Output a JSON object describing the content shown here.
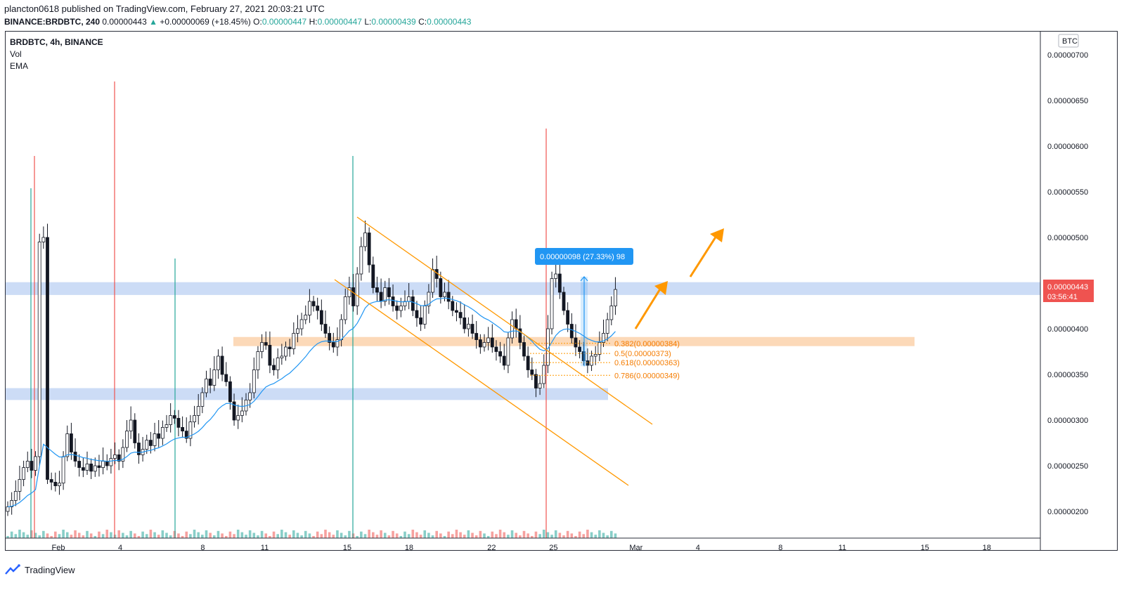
{
  "header": {
    "publisher": "plancton0618 published on TradingView.com, February 27, 2021 20:03:21 UTC",
    "symbol_line": "BINANCE:BRDBTC, 240",
    "last": "0.00000443",
    "change": "+0.00000069 (+18.45%)",
    "o_label": "O:",
    "o": "0.00000447",
    "h_label": "H:",
    "h": "0.00000447",
    "l_label": "L:",
    "l": "0.00000439",
    "c_label": "C:",
    "c": "0.00000443"
  },
  "legend": {
    "symbol": "BRDBTC, 4h, BINANCE",
    "vol": "Vol",
    "ema": "EMA"
  },
  "currency": "BTC",
  "price_tag": {
    "value": "0.00000443",
    "countdown": "03:56:41"
  },
  "measure_label": "0.00000098 (27.33%) 98",
  "fib": [
    {
      "label": "0.382(0.00000384)",
      "price": 3.84
    },
    {
      "label": "0.5(0.00000373)",
      "price": 3.73
    },
    {
      "label": "0.618(0.00000363)",
      "price": 3.63
    },
    {
      "label": "0.786(0.00000349)",
      "price": 3.49
    }
  ],
  "footer": {
    "brand": "TradingView"
  },
  "colors": {
    "up": "#26a69a",
    "down": "#ef5350",
    "ema": "#2196f3",
    "channel": "#ff9800",
    "zone_blue": "#c6d8f5",
    "zone_orange": "#fcd5b0",
    "price_tag": "#ef5350"
  },
  "chart_data": {
    "type": "candlestick",
    "title": "BRDBTC, 4h, BINANCE",
    "y_axis": {
      "unit": "BTC",
      "range": [
        1.8e-06,
        7.2e-06
      ],
      "scale": "1e-8",
      "ticks": [
        "0.00000700",
        "0.00000650",
        "0.00000600",
        "0.00000550",
        "0.00000500",
        "0.00000450",
        "0.00000400",
        "0.00000350",
        "0.00000300",
        "0.00000250",
        "0.00000200"
      ]
    },
    "x_axis": {
      "ticks": [
        "Feb",
        "4",
        "8",
        "11",
        "15",
        "18",
        "22",
        "25",
        "Mar",
        "4",
        "8",
        "11",
        "15",
        "18"
      ],
      "tick_days": [
        1,
        4,
        8,
        11,
        15,
        18,
        22,
        25,
        29,
        32,
        36,
        39,
        43,
        46
      ]
    },
    "resistance_zone": [
      4.37,
      4.51
    ],
    "support_zone": [
      3.22,
      3.35
    ],
    "fib_zone": [
      3.81,
      3.91
    ],
    "candles_anchor_day": -0.5,
    "candles_per_day": 6,
    "series_close": [
      2.05,
      2.12,
      2.22,
      2.35,
      2.48,
      2.55,
      2.45,
      2.6,
      4.95,
      5.0,
      2.35,
      2.32,
      2.28,
      2.31,
      2.6,
      2.85,
      2.65,
      2.55,
      2.48,
      2.45,
      2.52,
      2.44,
      2.5,
      2.48,
      2.55,
      2.5,
      2.58,
      2.62,
      2.55,
      2.7,
      2.88,
      3.0,
      2.75,
      2.62,
      2.68,
      2.78,
      2.72,
      2.85,
      2.8,
      2.92,
      2.95,
      3.05,
      3.02,
      2.92,
      2.88,
      2.8,
      2.98,
      3.05,
      3.15,
      3.3,
      3.45,
      3.38,
      3.55,
      3.7,
      3.5,
      3.42,
      3.2,
      3.0,
      3.05,
      3.1,
      3.22,
      3.3,
      3.55,
      3.75,
      3.85,
      3.82,
      3.6,
      3.55,
      3.68,
      3.7,
      3.8,
      3.78,
      3.95,
      4.0,
      4.1,
      4.15,
      4.3,
      4.25,
      4.2,
      4.05,
      3.95,
      3.85,
      3.8,
      3.88,
      4.1,
      4.35,
      4.45,
      4.25,
      4.6,
      4.9,
      5.05,
      4.7,
      4.45,
      4.4,
      4.3,
      4.45,
      4.35,
      4.25,
      4.2,
      4.25,
      4.3,
      4.35,
      4.2,
      4.12,
      4.05,
      4.25,
      4.4,
      4.65,
      4.55,
      4.35,
      4.4,
      4.3,
      4.2,
      4.18,
      4.12,
      4.0,
      4.05,
      3.95,
      3.88,
      3.8,
      3.85,
      3.9,
      3.8,
      3.75,
      3.7,
      3.6,
      3.9,
      4.1,
      4.0,
      3.85,
      3.7,
      3.55,
      3.5,
      3.35,
      3.4,
      3.6,
      4.0,
      4.55,
      4.6,
      4.4,
      4.2,
      4.05,
      3.9,
      3.8,
      3.75,
      3.65,
      3.6,
      3.7,
      3.72,
      3.85,
      3.95,
      4.1,
      4.25,
      4.43
    ],
    "ema_close_trend": "smoothed",
    "volume": "bars at bottom; spikes near Jan 30, Feb 3, Feb 6, Feb 15, Feb 24"
  }
}
